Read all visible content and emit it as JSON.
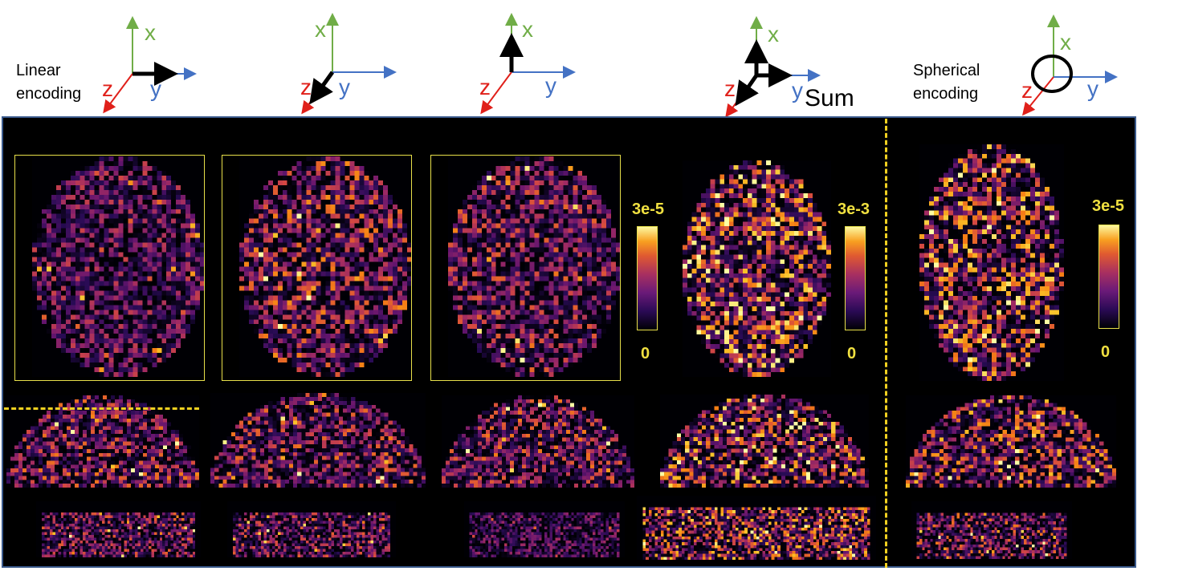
{
  "header": {
    "linear_label_line1": "Linear",
    "linear_label_line2": "encoding",
    "spherical_label_line1": "Spherical",
    "spherical_label_line2": "encoding",
    "sum_label": "Sum"
  },
  "axes": {
    "x_label": "x",
    "y_label": "y",
    "z_label": "z",
    "colors": {
      "x": "#70ad47",
      "y": "#4472c4",
      "z": "#e0201a",
      "arrow": "#000000"
    }
  },
  "colorbars": [
    {
      "max_label": "3e-5",
      "min_label": "0"
    },
    {
      "max_label": "3e-3",
      "min_label": "0"
    },
    {
      "max_label": "3e-5",
      "min_label": "0"
    }
  ],
  "colors": {
    "panel_bg": "#000000",
    "panel_border": "#3a5a8c",
    "dash": "#f0d020",
    "label_yellow": "#f0e040"
  }
}
